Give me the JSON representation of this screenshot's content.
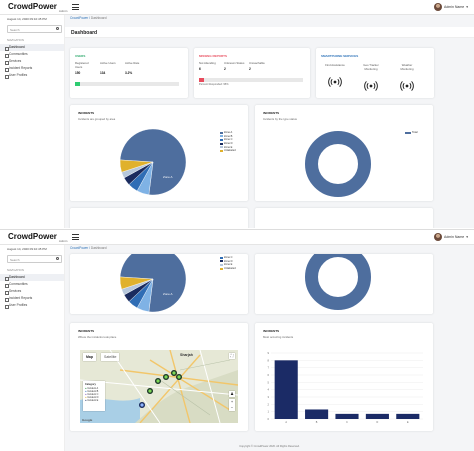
{
  "app": {
    "brand": "CrowdPower",
    "brand_sub": "Admin",
    "user_name": "Admin Name"
  },
  "sidebar": {
    "date": "August 14, 2020 09:10:45 PM",
    "search_placeholder": "Search",
    "section": "NAVIGATION",
    "items": [
      {
        "label": "Dashboard",
        "active": true
      },
      {
        "label": "Communities"
      },
      {
        "label": "Services"
      },
      {
        "label": "Incident Reports"
      },
      {
        "label": "User Profiles"
      }
    ]
  },
  "breadcrumb": {
    "root": "CrowdPower",
    "current": "Dashboard"
  },
  "page_title": "Dashboard",
  "kpi_users": {
    "title": "USERS",
    "headers": [
      "Registered Users",
      "Active Users",
      "Active Rate"
    ],
    "values": [
      "150",
      "134",
      "3.2%"
    ],
    "bar_fraction": 0.05,
    "bar_color": "#2ecc71"
  },
  "kpi_missing": {
    "title": "MISSING REPORTS",
    "headers": [
      "Not Attending",
      "Unknown Status",
      "Unreachable"
    ],
    "values": [
      "6",
      "2",
      "2"
    ],
    "bar_fraction": 0.05,
    "bar_color": "#e84c5d",
    "bar_label": "Percent Responded: 95%"
  },
  "kpi_devices": {
    "title": "SMARTPHONE SERVICES",
    "items": [
      "Find Assistance",
      "Geo Tracker Monitoring",
      "Weather Monitoring"
    ]
  },
  "incidents_pie": {
    "title": "INCIDENTS",
    "subtitle": "Incidents are grouped by area",
    "main_label": "Zone A",
    "legend": [
      "Zone A",
      "Zone B",
      "Zone C",
      "Zone D",
      "Zone E",
      "Unlabeled"
    ]
  },
  "incidents_donut": {
    "title": "INCIDENTS",
    "subtitle": "Incidents by the type status",
    "legend": [
      "Total"
    ]
  },
  "map_card": {
    "title": "INCIDENTS",
    "subtitle": "Where the incidents took place",
    "tab_map": "Map",
    "tab_satellite": "Satellite",
    "legend_title": "Category",
    "legend_items": [
      "Incident A",
      "Incident B",
      "Incident C",
      "Incident D",
      "Incident E"
    ],
    "city_label": "Sharjah"
  },
  "bar_card": {
    "title": "INCIDENTS",
    "subtitle": "Most occurring incidents"
  },
  "chart_data": [
    {
      "type": "pie",
      "title": "",
      "labels": [
        "Zone A",
        "Zone B",
        "Zone C",
        "Zone D",
        "Zone E",
        "Unlabeled"
      ],
      "values": [
        76,
        6,
        5,
        4,
        3,
        6
      ],
      "colors": [
        "#4e6e9e",
        "#7fb2e5",
        "#2f6db5",
        "#1a2b5e",
        "#b7c8dc",
        "#e0b12c"
      ],
      "legend": "right"
    },
    {
      "type": "pie",
      "title": "",
      "labels": [
        "Total"
      ],
      "values": [
        100
      ],
      "colors": [
        "#4e6e9e"
      ],
      "legend": "top-right"
    },
    {
      "type": "bar",
      "title": "",
      "categories": [
        "A",
        "B",
        "C",
        "D",
        "E"
      ],
      "values": [
        8,
        1.3,
        0.7,
        0.7,
        0.7
      ],
      "ylim": [
        0,
        9
      ],
      "color": "#1b2b66"
    }
  ]
}
